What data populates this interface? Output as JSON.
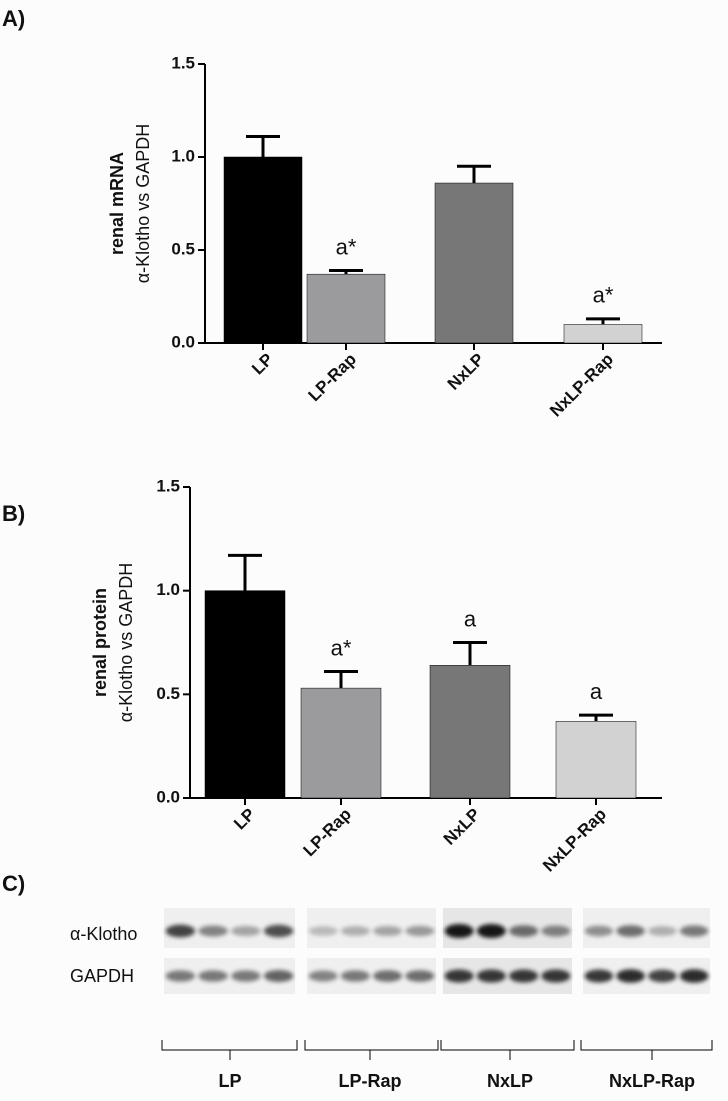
{
  "chart_data": [
    {
      "type": "bar",
      "panel_label": "A)",
      "ylabel": [
        "renal mRNA",
        "α-Klotho vs GAPDH"
      ],
      "categories": [
        "LP",
        "LP-Rap",
        "NxLP",
        "NxLP-Rap"
      ],
      "values": [
        1.0,
        0.37,
        0.86,
        0.1
      ],
      "errors": [
        0.11,
        0.02,
        0.09,
        0.03
      ],
      "colors": [
        "#000000",
        "#9b9b9d",
        "#777777",
        "#d2d2d2"
      ],
      "annotations": [
        {
          "category": "LP-Rap",
          "text": "a*"
        },
        {
          "category": "NxLP-Rap",
          "text": "a*"
        }
      ],
      "ylim": [
        0,
        1.5
      ],
      "yticks": [
        {
          "value": 0,
          "label": "0.0"
        },
        0.5,
        {
          "value": 1,
          "label": "1.0"
        },
        1.5
      ]
    },
    {
      "type": "bar",
      "panel_label": "B)",
      "ylabel": [
        "renal protein",
        "α-Klotho vs GAPDH"
      ],
      "categories": [
        "LP",
        "LP-Rap",
        "NxLP",
        "NxLP-Rap"
      ],
      "values": [
        1.0,
        0.53,
        0.64,
        0.37
      ],
      "errors": [
        0.17,
        0.08,
        0.11,
        0.03
      ],
      "colors": [
        "#000000",
        "#9b9b9d",
        "#777777",
        "#d2d2d2"
      ],
      "annotations": [
        {
          "category": "LP-Rap",
          "text": "a*"
        },
        {
          "category": "NxLP",
          "text": "a"
        },
        {
          "category": "NxLP-Rap",
          "text": "a"
        }
      ],
      "ylim": [
        0,
        1.5
      ],
      "yticks": [
        {
          "value": 0,
          "label": "0.0"
        },
        0.5,
        {
          "value": 1,
          "label": "1.0"
        },
        1.5
      ]
    }
  ],
  "blot": {
    "panel_label": "C)",
    "rows": [
      "α-Klotho",
      "GAPDH"
    ],
    "groups": [
      "LP",
      "LP-Rap",
      "NxLP",
      "NxLP-Rap"
    ]
  }
}
